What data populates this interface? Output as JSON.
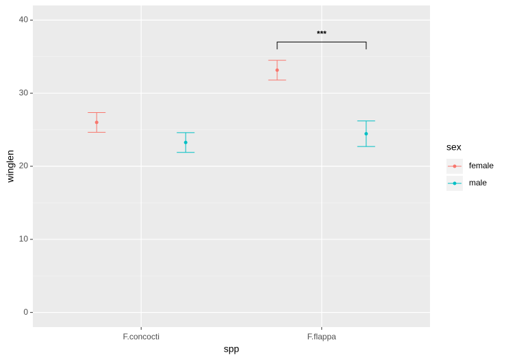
{
  "chart_data": {
    "type": "errorpoint",
    "x_label": "spp",
    "y_label": "winglen",
    "categories": [
      "F.concocti",
      "F.flappa"
    ],
    "series": [
      {
        "name": "female",
        "color": "#F8766D",
        "values": [
          26.0,
          33.15
        ],
        "errors": [
          1.35,
          1.35
        ]
      },
      {
        "name": "male",
        "color": "#00BFC4",
        "values": [
          23.25,
          24.45
        ],
        "errors": [
          1.35,
          1.75
        ]
      }
    ],
    "ylim": [
      -2,
      42
    ],
    "yticks": [
      0,
      10,
      20,
      30,
      40
    ],
    "yminor": [
      5,
      15,
      25,
      35
    ],
    "grid": true,
    "legend_title": "sex",
    "legend": "right",
    "annotation": {
      "text": "***",
      "y": 37,
      "tip": 36
    }
  }
}
